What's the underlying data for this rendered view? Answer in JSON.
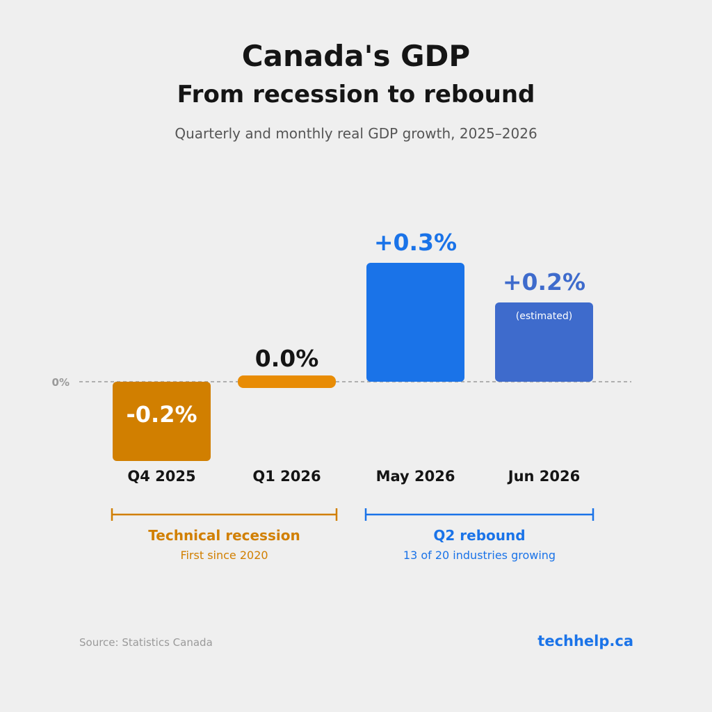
{
  "header": {
    "title": "Canada's GDP",
    "subtitle": "From recession to rebound",
    "description": "Quarterly and monthly real GDP growth, 2025–2026"
  },
  "chart_data": {
    "type": "bar",
    "categories": [
      "Q4 2025",
      "Q1 2026",
      "May 2026",
      "Jun 2026"
    ],
    "values": [
      -0.2,
      0.0,
      0.3,
      0.2
    ],
    "value_labels": [
      "-0.2%",
      "0.0%",
      "+0.3%",
      "+0.2%"
    ],
    "bar_notes": [
      "",
      "",
      "",
      "(estimated)"
    ],
    "colors": [
      "#d17f00",
      "#e88c05",
      "#1a73e8",
      "#3e6bcc"
    ],
    "value_label_colors": [
      "#ffffff",
      "#151515",
      "#1a73e8",
      "#3e6bcc"
    ],
    "zero_label": "0%",
    "ylim": [
      -0.2,
      0.3
    ]
  },
  "annotations": [
    {
      "title": "Technical recession",
      "subtitle": "First since 2020",
      "color": "#d17f00"
    },
    {
      "title": "Q2 rebound",
      "subtitle": "13 of 20 industries growing",
      "color": "#1a73e8"
    }
  ],
  "footer": {
    "source": "Source: Statistics Canada",
    "brand": "techhelp.ca"
  }
}
